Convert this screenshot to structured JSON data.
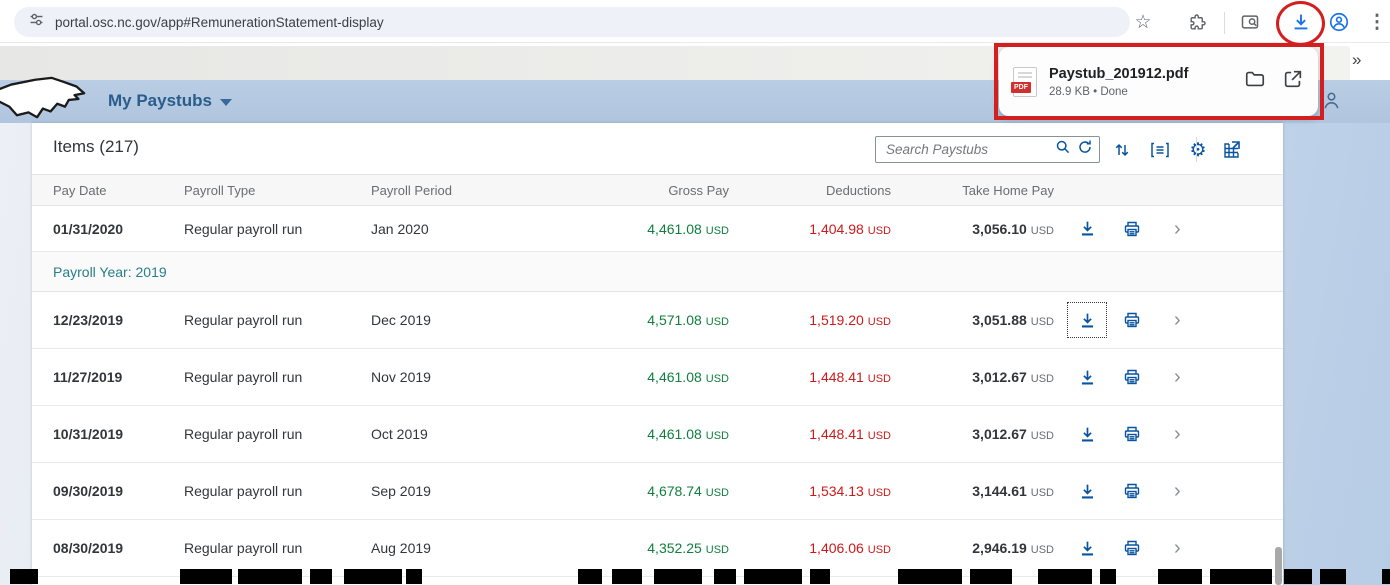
{
  "browser": {
    "url": "portal.osc.nc.gov/app#RemunerationStatement-display"
  },
  "download_popup": {
    "filename": "Paystub_201912.pdf",
    "meta": "28.9 KB • Done",
    "pdf_badge": "PDF"
  },
  "header": {
    "title": "My Paystubs",
    "collapse_chevron": "»"
  },
  "icons": {
    "star": "☆",
    "kebab": "⋮",
    "gear": "⚙",
    "row_chevron": "›"
  },
  "list": {
    "title": "Items (217)",
    "search_placeholder": "Search Paystubs",
    "currency": "USD",
    "columns": [
      "Pay Date",
      "Payroll Type",
      "Payroll Period",
      "Gross Pay",
      "Deductions",
      "Take Home Pay"
    ],
    "sections": [
      {
        "rows": [
          {
            "pay_date": "01/31/2020",
            "payroll_type": "Regular payroll run",
            "payroll_period": "Jan 2020",
            "gross_pay": "4,461.08",
            "deductions": "1,404.98",
            "take_home_pay": "3,056.10",
            "first": true
          }
        ]
      },
      {
        "group_label": "Payroll Year: 2019",
        "rows": [
          {
            "pay_date": "12/23/2019",
            "payroll_type": "Regular payroll run",
            "payroll_period": "Dec 2019",
            "gross_pay": "4,571.08",
            "deductions": "1,519.20",
            "take_home_pay": "3,051.88",
            "download_focused": true
          },
          {
            "pay_date": "11/27/2019",
            "payroll_type": "Regular payroll run",
            "payroll_period": "Nov 2019",
            "gross_pay": "4,461.08",
            "deductions": "1,448.41",
            "take_home_pay": "3,012.67"
          },
          {
            "pay_date": "10/31/2019",
            "payroll_type": "Regular payroll run",
            "payroll_period": "Oct 2019",
            "gross_pay": "4,461.08",
            "deductions": "1,448.41",
            "take_home_pay": "3,012.67"
          },
          {
            "pay_date": "09/30/2019",
            "payroll_type": "Regular payroll run",
            "payroll_period": "Sep 2019",
            "gross_pay": "4,678.74",
            "deductions": "1,534.13",
            "take_home_pay": "3,144.61"
          },
          {
            "pay_date": "08/30/2019",
            "payroll_type": "Regular payroll run",
            "payroll_period": "Aug 2019",
            "gross_pay": "4,352.25",
            "deductions": "1,406.06",
            "take_home_pay": "2,946.19"
          }
        ]
      }
    ]
  },
  "colors": {
    "positive": "#107e3e",
    "negative": "#cc1a1a",
    "accent_blue": "#0854a0",
    "annotation_red": "#d21f1f"
  },
  "redaction": {
    "bars": [
      [
        10,
        28
      ],
      [
        180,
        52
      ],
      [
        238,
        64
      ],
      [
        310,
        22
      ],
      [
        344,
        58
      ],
      [
        406,
        16
      ],
      [
        578,
        24
      ],
      [
        612,
        30
      ],
      [
        654,
        48
      ],
      [
        714,
        22
      ],
      [
        744,
        58
      ],
      [
        810,
        20
      ],
      [
        898,
        64
      ],
      [
        970,
        42
      ],
      [
        1038,
        54
      ],
      [
        1100,
        16
      ],
      [
        1158,
        44
      ],
      [
        1210,
        62
      ],
      [
        1284,
        28
      ],
      [
        1320,
        26
      ],
      [
        1382,
        8
      ]
    ]
  }
}
